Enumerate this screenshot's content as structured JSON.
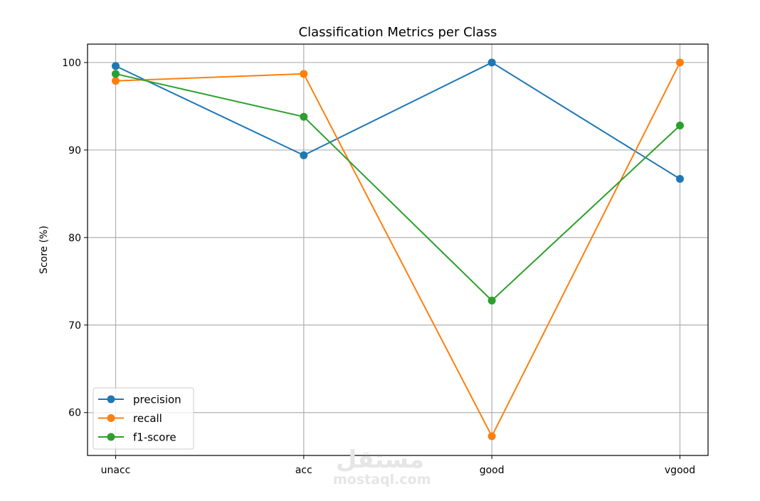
{
  "chart_data": {
    "type": "line",
    "title": "Classification Metrics per Class",
    "xlabel": "",
    "ylabel": "Score (%)",
    "categories": [
      "unacc",
      "acc",
      "good",
      "vgood"
    ],
    "series": [
      {
        "name": "precision",
        "color": "#1f77b4",
        "values": [
          99.6,
          89.4,
          100.0,
          86.7
        ]
      },
      {
        "name": "recall",
        "color": "#ff7f0e",
        "values": [
          97.9,
          98.7,
          57.3,
          100.0
        ]
      },
      {
        "name": "f1-score",
        "color": "#2ca02c",
        "values": [
          98.7,
          93.8,
          72.8,
          92.8
        ]
      }
    ],
    "ylim": [
      55.1,
      102.1
    ],
    "yticks": [
      60,
      70,
      80,
      90,
      100
    ],
    "grid": true,
    "legend_position": "lower left",
    "markers": "circle"
  },
  "watermark": {
    "arabic": "مستقل",
    "latin": "mostaql.com"
  }
}
